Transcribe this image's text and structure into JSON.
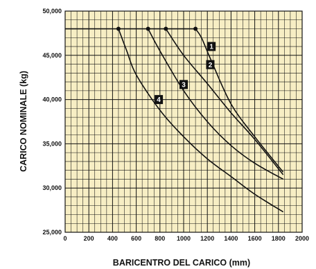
{
  "chart_data": {
    "type": "line",
    "xlabel": "BARICENTRO DEL CARICO (mm)",
    "ylabel": "CARICO NOMINALE (kg)",
    "xlim": [
      0,
      2000
    ],
    "ylim": [
      25000,
      50000
    ],
    "x_ticks": [
      "0",
      "200",
      "400",
      "600",
      "800",
      "1000",
      "1200",
      "1400",
      "1600",
      "1800",
      "2000"
    ],
    "y_ticks": [
      "25,000",
      "30,000",
      "35,000",
      "40,000",
      "45,000",
      "50,000"
    ],
    "grid": true,
    "background_color": "#f7eec4",
    "line_color": "#111111",
    "plateau": {
      "x": [
        0,
        1100
      ],
      "y": 48000
    },
    "series": [
      {
        "name": "1",
        "points": [
          [
            1100,
            48000
          ],
          [
            1150,
            47000
          ],
          [
            1230,
            44500
          ],
          [
            1400,
            39500
          ],
          [
            1600,
            35800
          ],
          [
            1840,
            31800
          ]
        ],
        "label_at": [
          1235,
          46000
        ]
      },
      {
        "name": "2",
        "points": [
          [
            850,
            48000
          ],
          [
            1000,
            45000
          ],
          [
            1200,
            41800
          ],
          [
            1400,
            38500
          ],
          [
            1600,
            35500
          ],
          [
            1840,
            31500
          ]
        ],
        "label_at": [
          1225,
          43950
        ]
      },
      {
        "name": "3",
        "points": [
          [
            700,
            48000
          ],
          [
            800,
            45500
          ],
          [
            1000,
            41000
          ],
          [
            1200,
            37500
          ],
          [
            1400,
            34800
          ],
          [
            1600,
            32800
          ],
          [
            1840,
            31000
          ]
        ],
        "label_at": [
          1000,
          41700
        ]
      },
      {
        "name": "4",
        "points": [
          [
            450,
            48000
          ],
          [
            520,
            45500
          ],
          [
            600,
            42800
          ],
          [
            800,
            38800
          ],
          [
            1000,
            35800
          ],
          [
            1200,
            33300
          ],
          [
            1400,
            31300
          ],
          [
            1600,
            29300
          ],
          [
            1840,
            27300
          ]
        ],
        "label_at": [
          790,
          40000
        ]
      }
    ]
  }
}
